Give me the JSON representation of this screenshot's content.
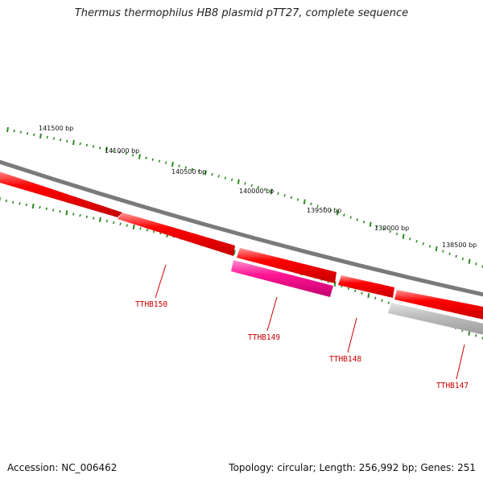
{
  "title": "Thermus thermophilus HB8 plasmid pTT27, complete sequence",
  "footer": {
    "accession": "Accession: NC_006462",
    "summary": "Topology: circular; Length: 256,992 bp; Genes: 251"
  },
  "ruler_labels": [
    "141500 bp",
    "141000 bp",
    "140500 bp",
    "140000 bp",
    "139500 bp",
    "139000 bp",
    "138500 bp"
  ],
  "genes": [
    {
      "label": "TTHB150",
      "color": "#ff0000"
    },
    {
      "label": "TTHB149",
      "color": "#ff1493"
    },
    {
      "label": "TTHB148",
      "color": "#ff0000"
    },
    {
      "label": "TTHB147",
      "color": "#ff0000"
    }
  ],
  "colors": {
    "backbone": "#7a7a7a",
    "ruler_ticks": "#2e8b22",
    "unlabeled_gene": "#b0b0b0",
    "label_text": "#cc0000"
  }
}
